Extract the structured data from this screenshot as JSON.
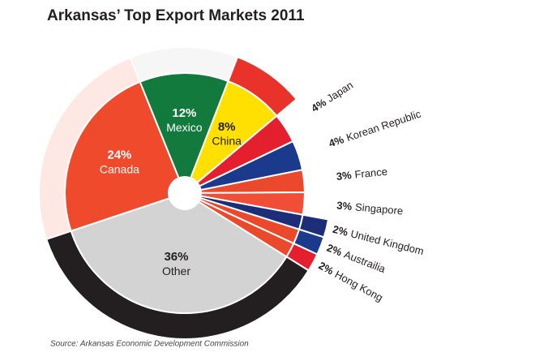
{
  "chart_data": {
    "type": "pie",
    "title": "Arkansas’ Top Export Markets 2011",
    "source": "Source: Arkansas Economic Development Commission",
    "categories": [
      "Mexico",
      "China",
      "Japan",
      "Korean Republic",
      "France",
      "Singapore",
      "United Kingdom",
      "Austrailia",
      "Hong Kong",
      "Other",
      "Canada"
    ],
    "values": [
      12,
      8,
      4,
      4,
      3,
      3,
      2,
      2,
      2,
      36,
      24
    ],
    "value_labels": [
      "12%",
      "8%",
      "4%",
      "4%",
      "3%",
      "3%",
      "2%",
      "2%",
      "2%",
      "36%",
      "24%"
    ],
    "colors": [
      "#137a3e",
      "#ffe000",
      "#e5202e",
      "#1b3a8c",
      "#ea4a2b",
      "#f04e37",
      "#1d2d78",
      "#ea4a2b",
      "#ea4a2b",
      "#d3d3d3",
      "#ef4a2c"
    ],
    "ring_colors": [
      "#f6f6f6",
      "#e8322a",
      "#ffffff",
      "#ffffff",
      "#ffffff",
      "#ffffff",
      "#1d2d78",
      "#1b3a8c",
      "#e5202e",
      "#231f20",
      "#fde8e3"
    ]
  }
}
